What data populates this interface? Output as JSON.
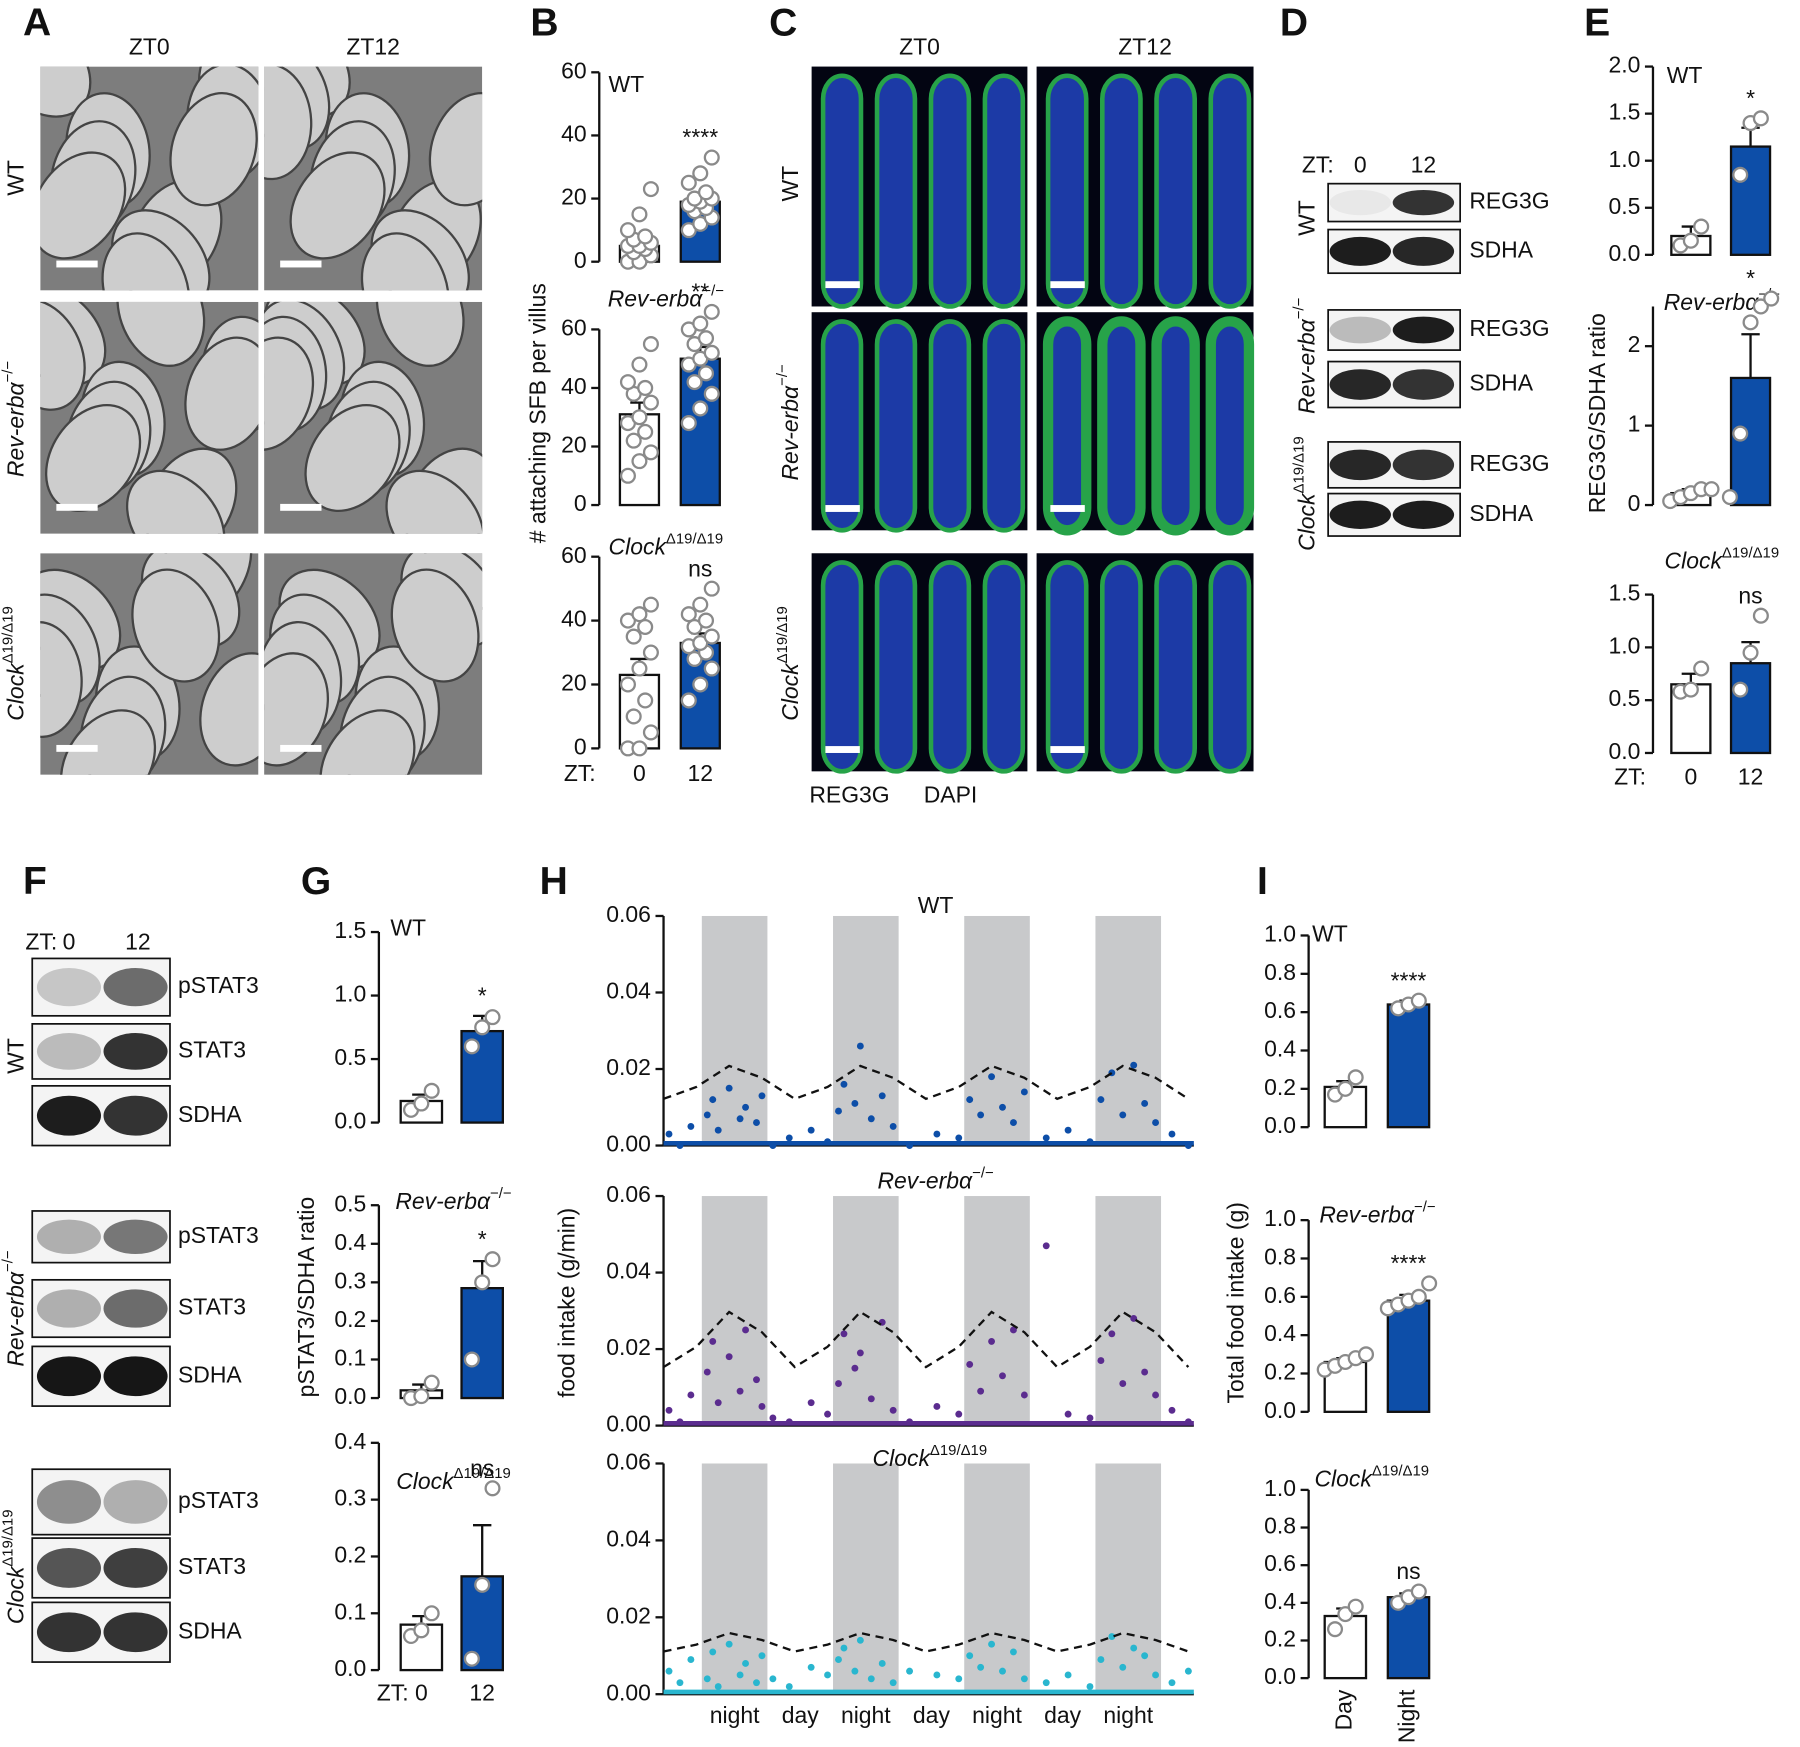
{
  "figure_labels": [
    "A",
    "B",
    "C",
    "D",
    "E",
    "F",
    "G",
    "H",
    "I"
  ],
  "genotypes": [
    {
      "name": "WT"
    },
    {
      "name": "Rev-erbα",
      "sup": "−/−",
      "italic": true
    },
    {
      "name": "Clock",
      "sup": "Δ19/Δ19",
      "italic": true
    }
  ],
  "panel_a": {
    "columns": [
      "ZT0",
      "ZT12"
    ]
  },
  "panel_c": {
    "columns": [
      "ZT0",
      "ZT12"
    ],
    "legend": [
      {
        "label": "REG3G",
        "color": "#1aa04a"
      },
      {
        "label": "DAPI",
        "color": "#1f3fa0"
      }
    ]
  },
  "panel_d": {
    "prefix": "ZT:",
    "lanes": [
      "0",
      "12"
    ],
    "bands": [
      "REG3G",
      "SDHA"
    ]
  },
  "panel_f": {
    "prefix": "ZT:",
    "lanes": [
      "0",
      "12"
    ],
    "bands": [
      "pSTAT3",
      "STAT3",
      "SDHA"
    ]
  },
  "chart_data": [
    {
      "type": "bar",
      "ylabel": "# attaching SFB per villus",
      "xprefix": "ZT:",
      "categories": [
        "0",
        "12"
      ],
      "colors": [
        "#ffffff",
        "#0d4ea8"
      ],
      "subplots": [
        {
          "title": {
            "name": "WT"
          },
          "ylim": [
            0,
            60
          ],
          "yticks": [
            0,
            20,
            40,
            60
          ],
          "values": [
            5,
            19
          ],
          "errors": [
            1.5,
            2
          ],
          "annotation": "****",
          "points": [
            [
              0,
              0,
              2,
              3,
              4,
              5,
              5,
              6,
              7,
              8,
              10,
              15,
              23
            ],
            [
              10,
              12,
              14,
              16,
              17,
              18,
              19,
              20,
              20,
              22,
              25,
              28,
              33
            ]
          ]
        },
        {
          "title": {
            "name": "Rev-erbα",
            "sup": "−/−",
            "italic": true
          },
          "ylim": [
            0,
            60
          ],
          "yticks": [
            0,
            20,
            40,
            60
          ],
          "values": [
            31,
            50
          ],
          "errors": [
            4,
            4
          ],
          "annotation": "**",
          "points": [
            [
              10,
              15,
              18,
              22,
              25,
              28,
              30,
              35,
              38,
              40,
              42,
              48,
              55
            ],
            [
              28,
              33,
              38,
              42,
              45,
              48,
              50,
              52,
              55,
              57,
              60,
              62,
              66
            ]
          ]
        },
        {
          "title": {
            "name": "Clock",
            "sup": "Δ19/Δ19",
            "italic": true
          },
          "ylim": [
            0,
            60
          ],
          "yticks": [
            0,
            20,
            40,
            60
          ],
          "values": [
            23,
            33
          ],
          "errors": [
            5,
            3
          ],
          "annotation": "ns",
          "points": [
            [
              0,
              0,
              5,
              10,
              15,
              20,
              25,
              30,
              35,
              38,
              40,
              42,
              45
            ],
            [
              15,
              20,
              25,
              28,
              30,
              32,
              33,
              35,
              38,
              40,
              42,
              45,
              50
            ]
          ]
        }
      ]
    },
    {
      "type": "bar",
      "ylabel": "REG3G/SDHA ratio",
      "xprefix": "ZT:",
      "categories": [
        "0",
        "12"
      ],
      "colors": [
        "#ffffff",
        "#0d4ea8"
      ],
      "subplots": [
        {
          "title": {
            "name": "WT"
          },
          "ylim": [
            0,
            2
          ],
          "yticks": [
            {
              "value": 0,
              "label": "0.0"
            },
            0.5,
            {
              "value": 1,
              "label": "1.0"
            },
            1.5,
            {
              "value": 2,
              "label": "2.0"
            }
          ],
          "values": [
            0.2,
            1.15
          ],
          "errors": [
            0.1,
            0.2
          ],
          "annotation": "*",
          "points": [
            [
              0.1,
              0.15,
              0.3
            ],
            [
              0.85,
              1.4,
              1.45
            ]
          ]
        },
        {
          "title": {
            "name": "Rev-erbα",
            "sup": "−/−",
            "italic": true
          },
          "ylim": [
            0,
            2.5
          ],
          "yticks": [
            0,
            1,
            2
          ],
          "values": [
            0.15,
            1.6
          ],
          "errors": [
            0.05,
            0.55
          ],
          "annotation": "*",
          "points": [
            [
              0.05,
              0.1,
              0.15,
              0.2,
              0.2
            ],
            [
              0.1,
              0.9,
              2.3,
              2.5,
              2.6
            ]
          ]
        },
        {
          "title": {
            "name": "Clock",
            "sup": "Δ19/Δ19",
            "italic": true
          },
          "ylim": [
            0,
            1.5
          ],
          "yticks": [
            {
              "value": 0,
              "label": "0.0"
            },
            0.5,
            {
              "value": 1,
              "label": "1.0"
            },
            1.5
          ],
          "values": [
            0.65,
            0.85
          ],
          "errors": [
            0.1,
            0.2
          ],
          "annotation": "ns",
          "points": [
            [
              0.58,
              0.6,
              0.8
            ],
            [
              0.6,
              0.95,
              1.3
            ]
          ]
        }
      ]
    },
    {
      "type": "bar",
      "ylabel": "pSTAT3/SDHA ratio",
      "xprefix": "ZT:",
      "categories": [
        "0",
        "12"
      ],
      "colors": [
        "#ffffff",
        "#0d4ea8"
      ],
      "subplots": [
        {
          "title": {
            "name": "WT"
          },
          "ylim": [
            0,
            1.5
          ],
          "yticks": [
            {
              "value": 0,
              "label": "0.0"
            },
            0.5,
            {
              "value": 1,
              "label": "1.0"
            },
            1.5
          ],
          "values": [
            0.17,
            0.72
          ],
          "errors": [
            0.05,
            0.12
          ],
          "annotation": "*",
          "points": [
            [
              0.1,
              0.15,
              0.25
            ],
            [
              0.6,
              0.75,
              0.83
            ]
          ]
        },
        {
          "title": {
            "name": "Rev-erbα",
            "sup": "−/−",
            "italic": true
          },
          "ylim": [
            0,
            0.5
          ],
          "yticks": [
            {
              "value": 0,
              "label": "0.0"
            },
            0.1,
            0.2,
            0.3,
            0.4,
            0.5
          ],
          "values": [
            0.02,
            0.285
          ],
          "errors": [
            0.015,
            0.07
          ],
          "annotation": "*",
          "points": [
            [
              0,
              0.005,
              0.04
            ],
            [
              0.1,
              0.3,
              0.36
            ]
          ]
        },
        {
          "title": {
            "name": "Clock",
            "sup": "Δ19/Δ19",
            "italic": true
          },
          "ylim": [
            0,
            0.4
          ],
          "yticks": [
            {
              "value": 0,
              "label": "0.0"
            },
            0.1,
            0.2,
            0.3,
            0.4
          ],
          "values": [
            0.08,
            0.165
          ],
          "errors": [
            0.015,
            0.09
          ],
          "annotation": "ns",
          "points": [
            [
              0.06,
              0.07,
              0.1
            ],
            [
              0.02,
              0.15,
              0.32
            ]
          ]
        }
      ]
    },
    {
      "type": "scatter",
      "ylabel": "food intake (g/min)",
      "xlim": [
        0,
        97
      ],
      "nights": [
        [
          7,
          19
        ],
        [
          31,
          43
        ],
        [
          55,
          67
        ],
        [
          79,
          91
        ]
      ],
      "xlabels": [
        {
          "value": 13,
          "label": "night"
        },
        {
          "value": 25,
          "label": "day"
        },
        {
          "value": 37,
          "label": "night"
        },
        {
          "value": 49,
          "label": "day"
        },
        {
          "value": 61,
          "label": "night"
        },
        {
          "value": 73,
          "label": "day"
        },
        {
          "value": 85,
          "label": "night"
        }
      ],
      "x": [
        1,
        3,
        5,
        8,
        9,
        10,
        12,
        14,
        15,
        17,
        18,
        20,
        23,
        27,
        30,
        32,
        33,
        35,
        36,
        38,
        40,
        42,
        45,
        50,
        54,
        56,
        58,
        60,
        62,
        64,
        66,
        70,
        74,
        78,
        80,
        82,
        84,
        86,
        88,
        90,
        93,
        96
      ],
      "fit_x": [
        0,
        6,
        12,
        18,
        24,
        30,
        36,
        42,
        48,
        54,
        60,
        66,
        72,
        78,
        84,
        90,
        96
      ],
      "subplots": [
        {
          "title": {
            "name": "WT"
          },
          "color": "#0d4ea8",
          "ylim": [
            0,
            0.06
          ],
          "yticks": [
            {
              "value": 0,
              "label": "0.00"
            },
            {
              "value": 0.02,
              "label": "0.02"
            },
            {
              "value": 0.04,
              "label": "0.04"
            },
            {
              "value": 0.06,
              "label": "0.06"
            }
          ],
          "values": [
            0.003,
            0,
            0.005,
            0.008,
            0.012,
            0.004,
            0.015,
            0.007,
            0.01,
            0.006,
            0.013,
            0,
            0.002,
            0.004,
            0.001,
            0.009,
            0.016,
            0.011,
            0.026,
            0.007,
            0.013,
            0.005,
            0,
            0.003,
            0.002,
            0.012,
            0.008,
            0.018,
            0.01,
            0.006,
            0.014,
            0.002,
            0.004,
            0.001,
            0.012,
            0.019,
            0.008,
            0.021,
            0.011,
            0.006,
            0.003,
            0
          ],
          "fit": [
            0.0122,
            0.0153,
            0.0208,
            0.0177,
            0.0122,
            0.0153,
            0.0208,
            0.0177,
            0.0122,
            0.0153,
            0.0208,
            0.0177,
            0.0122,
            0.0153,
            0.0208,
            0.0177,
            0.0122
          ]
        },
        {
          "title": {
            "name": "Rev-erbα",
            "sup": "−/−",
            "italic": true
          },
          "color": "#5b2c8f",
          "ylim": [
            0,
            0.06
          ],
          "yticks": [
            {
              "value": 0,
              "label": "0.00"
            },
            {
              "value": 0.02,
              "label": "0.02"
            },
            {
              "value": 0.04,
              "label": "0.04"
            },
            {
              "value": 0.06,
              "label": "0.06"
            }
          ],
          "values": [
            0.004,
            0.001,
            0.008,
            0.014,
            0.022,
            0.006,
            0.018,
            0.009,
            0.025,
            0.012,
            0.005,
            0.002,
            0.001,
            0.006,
            0.003,
            0.011,
            0.024,
            0.015,
            0.019,
            0.007,
            0.027,
            0.004,
            0.001,
            0.005,
            0.003,
            0.016,
            0.009,
            0.022,
            0.013,
            0.025,
            0.008,
            0.047,
            0.003,
            0.002,
            0.017,
            0.024,
            0.011,
            0.028,
            0.014,
            0.008,
            0.004,
            0.001
          ],
          "fit": [
            0.0153,
            0.0206,
            0.0297,
            0.0244,
            0.0153,
            0.0206,
            0.0297,
            0.0244,
            0.0153,
            0.0206,
            0.0297,
            0.0244,
            0.0153,
            0.0206,
            0.0297,
            0.0244,
            0.0153
          ]
        },
        {
          "title": {
            "name": "Clock",
            "sup": "Δ19/Δ19",
            "italic": true
          },
          "color": "#29b6cf",
          "ylim": [
            0,
            0.06
          ],
          "yticks": [
            {
              "value": 0,
              "label": "0.00"
            },
            {
              "value": 0.02,
              "label": "0.02"
            },
            {
              "value": 0.04,
              "label": "0.04"
            },
            {
              "value": 0.06,
              "label": "0.06"
            }
          ],
          "values": [
            0.006,
            0.003,
            0.009,
            0.004,
            0.011,
            0.002,
            0.013,
            0.005,
            0.008,
            0.003,
            0.01,
            0.004,
            0.002,
            0.007,
            0.005,
            0.009,
            0.012,
            0.006,
            0.014,
            0.004,
            0.008,
            0.003,
            0.006,
            0.005,
            0.004,
            0.01,
            0.007,
            0.013,
            0.006,
            0.011,
            0.004,
            0.003,
            0.005,
            0.002,
            0.009,
            0.015,
            0.007,
            0.012,
            0.01,
            0.005,
            0.003,
            0.006
          ],
          "fit": [
            0.0111,
            0.0129,
            0.0159,
            0.0141,
            0.0111,
            0.0129,
            0.0159,
            0.0141,
            0.0111,
            0.0129,
            0.0159,
            0.0141,
            0.0111,
            0.0129,
            0.0159,
            0.0141,
            0.0111
          ]
        }
      ]
    },
    {
      "type": "bar",
      "ylabel": "Total food intake (g)",
      "categories": [
        "Day",
        "Night"
      ],
      "colors": [
        "#ffffff",
        "#0d4ea8"
      ],
      "subplots": [
        {
          "title": {
            "name": "WT"
          },
          "ylim": [
            0,
            1
          ],
          "yticks": [
            {
              "value": 0,
              "label": "0.0"
            },
            0.2,
            0.4,
            0.6,
            0.8,
            {
              "value": 1,
              "label": "1.0"
            }
          ],
          "values": [
            0.21,
            0.64
          ],
          "errors": [
            0.03,
            0.02
          ],
          "annotation": "****",
          "points": [
            [
              0.17,
              0.2,
              0.26
            ],
            [
              0.62,
              0.64,
              0.66
            ]
          ]
        },
        {
          "title": {
            "name": "Rev-erbα",
            "sup": "−/−",
            "italic": true
          },
          "ylim": [
            0,
            1
          ],
          "yticks": [
            {
              "value": 0,
              "label": "0.0"
            },
            0.2,
            0.4,
            0.6,
            0.8,
            {
              "value": 1,
              "label": "1.0"
            }
          ],
          "values": [
            0.26,
            0.58
          ],
          "errors": [
            0.02,
            0.03
          ],
          "annotation": "****",
          "points": [
            [
              0.22,
              0.24,
              0.26,
              0.28,
              0.3
            ],
            [
              0.54,
              0.56,
              0.58,
              0.6,
              0.67
            ]
          ]
        },
        {
          "title": {
            "name": "Clock",
            "sup": "Δ19/Δ19",
            "italic": true
          },
          "ylim": [
            0,
            1
          ],
          "yticks": [
            {
              "value": 0,
              "label": "0.0"
            },
            0.2,
            0.4,
            0.6,
            0.8,
            {
              "value": 1,
              "label": "1.0"
            }
          ],
          "values": [
            0.33,
            0.43
          ],
          "errors": [
            0.04,
            0.02
          ],
          "annotation": "ns",
          "points": [
            [
              0.26,
              0.34,
              0.38
            ],
            [
              0.4,
              0.43,
              0.46
            ]
          ]
        }
      ]
    }
  ]
}
